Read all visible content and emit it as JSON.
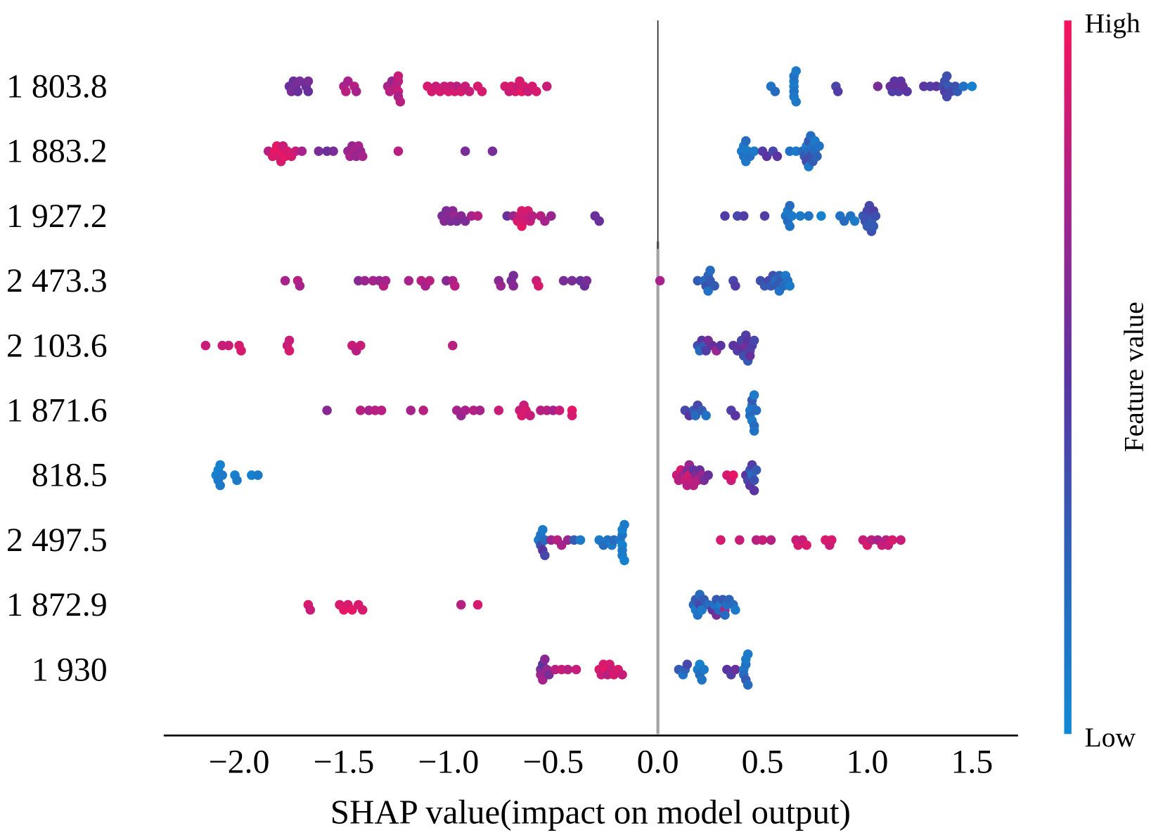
{
  "chart_data": {
    "type": "scatter",
    "xlabel": "SHAP value(impact on model output)",
    "xlim": [
      -2.36,
      1.72
    ],
    "x_ticks": [
      -2.0,
      -1.5,
      -1.0,
      -0.5,
      0.0,
      0.5,
      1.0,
      1.5
    ],
    "x_tick_labels": [
      "−2.0",
      "−1.5",
      "−1.0",
      "−0.5",
      "0.0",
      "0.5",
      "1.0",
      "1.5"
    ],
    "grid": false,
    "colorbar": {
      "label": "Feature value",
      "high_label": "High",
      "low_label": "Low",
      "colors": [
        "#1189d5",
        "#2c63b8",
        "#5a34a0",
        "#a7228a",
        "#f6145c"
      ]
    },
    "series": [
      {
        "name": "1 803.8",
        "x": [
          -1.76,
          -1.75,
          -1.74,
          -1.73,
          -1.72,
          -1.71,
          -1.68,
          -1.67,
          -1.67,
          -1.5,
          -1.49,
          -1.48,
          -1.45,
          -1.44,
          -1.29,
          -1.28,
          -1.27,
          -1.25,
          -1.24,
          -1.24,
          -1.24,
          -1.24,
          -1.23,
          -1.1,
          -1.08,
          -1.06,
          -1.04,
          -1.02,
          -1.0,
          -0.99,
          -0.97,
          -0.96,
          -0.94,
          -0.92,
          -0.9,
          -0.86,
          -0.84,
          -0.73,
          -0.71,
          -0.7,
          -0.68,
          -0.67,
          -0.66,
          -0.65,
          -0.64,
          -0.62,
          -0.6,
          -0.58,
          -0.53,
          0.54,
          0.56,
          0.65,
          0.65,
          0.65,
          0.65,
          0.65,
          0.66,
          0.66,
          0.85,
          0.86,
          1.05,
          1.11,
          1.12,
          1.13,
          1.14,
          1.15,
          1.16,
          1.17,
          1.19,
          1.27,
          1.3,
          1.33,
          1.36,
          1.37,
          1.37,
          1.38,
          1.38,
          1.39,
          1.4,
          1.42,
          1.43,
          1.46,
          1.5
        ],
        "feature_value": [
          0.55,
          0.6,
          0.55,
          0.6,
          0.55,
          0.6,
          0.55,
          0.55,
          0.6,
          0.75,
          0.8,
          0.75,
          0.8,
          0.75,
          0.75,
          0.8,
          0.7,
          0.8,
          0.85,
          0.8,
          0.75,
          0.85,
          0.8,
          0.9,
          0.9,
          0.85,
          0.9,
          0.85,
          0.9,
          0.85,
          0.9,
          0.8,
          0.9,
          0.85,
          0.85,
          0.9,
          0.9,
          0.9,
          0.85,
          0.9,
          0.9,
          0.85,
          0.9,
          0.95,
          0.9,
          0.85,
          0.9,
          0.9,
          0.85,
          0.15,
          0.2,
          0.1,
          0.15,
          0.1,
          0.12,
          0.15,
          0.1,
          0.1,
          0.4,
          0.45,
          0.6,
          0.55,
          0.45,
          0.5,
          0.55,
          0.45,
          0.5,
          0.55,
          0.5,
          0.5,
          0.45,
          0.5,
          0.4,
          0.45,
          0.35,
          0.4,
          0.35,
          0.3,
          0.4,
          0.35,
          0.3,
          0.15,
          0.05
        ]
      },
      {
        "name": "1 883.2",
        "x": [
          -1.86,
          -1.84,
          -1.83,
          -1.82,
          -1.81,
          -1.8,
          -1.8,
          -1.79,
          -1.78,
          -1.77,
          -1.75,
          -1.73,
          -1.7,
          -1.62,
          -1.58,
          -1.55,
          -1.48,
          -1.47,
          -1.46,
          -1.45,
          -1.44,
          -1.43,
          -1.42,
          -1.41,
          -1.24,
          -0.92,
          -0.79,
          0.4,
          0.41,
          0.41,
          0.42,
          0.42,
          0.43,
          0.44,
          0.46,
          0.5,
          0.52,
          0.55,
          0.57,
          0.63,
          0.66,
          0.69,
          0.7,
          0.71,
          0.71,
          0.72,
          0.72,
          0.72,
          0.73,
          0.73,
          0.74,
          0.74,
          0.75,
          0.75,
          0.76,
          0.77
        ],
        "feature_value": [
          0.8,
          0.9,
          0.95,
          0.95,
          0.9,
          0.95,
          0.9,
          0.85,
          0.95,
          0.9,
          0.9,
          0.85,
          0.75,
          0.6,
          0.55,
          0.6,
          0.7,
          0.75,
          0.7,
          0.75,
          0.7,
          0.75,
          0.7,
          0.75,
          0.8,
          0.6,
          0.6,
          0.1,
          0.15,
          0.1,
          0.12,
          0.2,
          0.1,
          0.15,
          0.1,
          0.45,
          0.5,
          0.4,
          0.5,
          0.15,
          0.1,
          0.2,
          0.3,
          0.1,
          0.4,
          0.2,
          0.3,
          0.1,
          0.35,
          0.2,
          0.15,
          0.3,
          0.2,
          0.1,
          0.25,
          0.15
        ]
      },
      {
        "name": "1 927.2",
        "x": [
          -1.03,
          -1.02,
          -1.01,
          -1.0,
          -0.99,
          -0.98,
          -0.97,
          -0.96,
          -0.94,
          -0.92,
          -0.89,
          -0.86,
          -0.72,
          -0.69,
          -0.67,
          -0.66,
          -0.65,
          -0.65,
          -0.64,
          -0.63,
          -0.62,
          -0.61,
          -0.6,
          -0.56,
          -0.54,
          -0.51,
          -0.3,
          -0.28,
          0.32,
          0.38,
          0.41,
          0.51,
          0.61,
          0.62,
          0.62,
          0.63,
          0.63,
          0.64,
          0.68,
          0.72,
          0.78,
          0.87,
          0.89,
          0.92,
          0.94,
          0.98,
          0.99,
          1.0,
          1.0,
          1.01,
          1.01,
          1.02,
          1.02,
          1.03,
          1.03,
          1.04
        ],
        "feature_value": [
          0.6,
          0.65,
          0.6,
          0.65,
          0.6,
          0.65,
          0.7,
          0.6,
          0.65,
          0.6,
          0.75,
          0.8,
          0.55,
          0.7,
          0.9,
          0.85,
          0.9,
          0.95,
          0.9,
          0.85,
          0.9,
          0.85,
          0.8,
          0.8,
          0.75,
          0.7,
          0.55,
          0.55,
          0.45,
          0.4,
          0.45,
          0.45,
          0.15,
          0.2,
          0.1,
          0.15,
          0.2,
          0.1,
          0.1,
          0.15,
          0.05,
          0.15,
          0.2,
          0.15,
          0.1,
          0.3,
          0.35,
          0.4,
          0.3,
          0.35,
          0.4,
          0.3,
          0.35,
          0.45,
          0.3,
          0.35
        ]
      },
      {
        "name": "2 473.3",
        "x": [
          -1.78,
          -1.72,
          -1.71,
          -1.43,
          -1.4,
          -1.36,
          -1.33,
          -1.31,
          -1.3,
          -1.19,
          -1.13,
          -1.11,
          -1.09,
          -1.01,
          -0.98,
          -0.97,
          -0.76,
          -0.75,
          -0.7,
          -0.69,
          -0.69,
          -0.58,
          -0.57,
          -0.45,
          -0.41,
          -0.37,
          -0.35,
          -0.34,
          0.01,
          0.19,
          0.22,
          0.23,
          0.24,
          0.24,
          0.25,
          0.25,
          0.27,
          0.36,
          0.37,
          0.49,
          0.51,
          0.53,
          0.54,
          0.55,
          0.56,
          0.57,
          0.58,
          0.58,
          0.59,
          0.6,
          0.61,
          0.62,
          0.63
        ],
        "feature_value": [
          0.75,
          0.8,
          0.75,
          0.65,
          0.7,
          0.75,
          0.7,
          0.8,
          0.75,
          0.75,
          0.8,
          0.75,
          0.8,
          0.65,
          0.75,
          0.8,
          0.65,
          0.7,
          0.6,
          0.65,
          0.6,
          0.85,
          0.9,
          0.6,
          0.6,
          0.55,
          0.55,
          0.6,
          0.75,
          0.3,
          0.2,
          0.35,
          0.25,
          0.15,
          0.3,
          0.2,
          0.3,
          0.4,
          0.45,
          0.35,
          0.3,
          0.4,
          0.3,
          0.35,
          0.2,
          0.3,
          0.25,
          0.15,
          0.3,
          0.2,
          0.1,
          0.15,
          0.1
        ]
      },
      {
        "name": "2 103.6",
        "x": [
          -2.16,
          -2.08,
          -2.05,
          -2.0,
          -1.99,
          -1.77,
          -1.76,
          -1.76,
          -1.46,
          -1.44,
          -1.42,
          -0.98,
          0.19,
          0.2,
          0.21,
          0.22,
          0.23,
          0.24,
          0.26,
          0.28,
          0.3,
          0.36,
          0.38,
          0.39,
          0.4,
          0.41,
          0.41,
          0.42,
          0.42,
          0.43,
          0.43,
          0.44,
          0.44,
          0.45,
          0.46
        ],
        "feature_value": [
          0.85,
          0.85,
          0.85,
          0.9,
          0.9,
          0.85,
          0.9,
          0.85,
          0.85,
          0.8,
          0.85,
          0.8,
          0.35,
          0.2,
          0.5,
          0.3,
          0.45,
          0.6,
          0.55,
          0.7,
          0.5,
          0.5,
          0.45,
          0.55,
          0.4,
          0.5,
          0.35,
          0.6,
          0.45,
          0.5,
          0.3,
          0.4,
          0.55,
          0.45,
          0.4
        ]
      },
      {
        "name": "1 871.6",
        "x": [
          -1.58,
          -1.42,
          -1.38,
          -1.35,
          -1.32,
          -1.18,
          -1.12,
          -0.96,
          -0.94,
          -0.92,
          -0.88,
          -0.85,
          -0.76,
          -0.66,
          -0.65,
          -0.64,
          -0.63,
          -0.61,
          -0.56,
          -0.53,
          -0.5,
          -0.47,
          -0.41,
          -0.41,
          0.13,
          0.15,
          0.17,
          0.18,
          0.19,
          0.21,
          0.23,
          0.35,
          0.37,
          0.44,
          0.44,
          0.45,
          0.45,
          0.45,
          0.46,
          0.46,
          0.46,
          0.47
        ],
        "feature_value": [
          0.65,
          0.8,
          0.75,
          0.8,
          0.8,
          0.75,
          0.8,
          0.75,
          0.7,
          0.75,
          0.8,
          0.75,
          0.85,
          0.85,
          0.9,
          0.85,
          0.9,
          0.85,
          0.8,
          0.8,
          0.75,
          0.85,
          0.95,
          0.9,
          0.4,
          0.5,
          0.3,
          0.2,
          0.4,
          0.3,
          0.15,
          0.45,
          0.5,
          0.1,
          0.2,
          0.15,
          0.1,
          0.3,
          0.2,
          0.1,
          0.15,
          0.2
        ]
      },
      {
        "name": "818.5",
        "x": [
          -2.11,
          -2.1,
          -2.1,
          -2.09,
          -2.09,
          -2.08,
          -2.02,
          -2.01,
          -1.94,
          -1.91,
          0.09,
          0.1,
          0.11,
          0.12,
          0.13,
          0.14,
          0.14,
          0.15,
          0.15,
          0.16,
          0.17,
          0.17,
          0.18,
          0.19,
          0.2,
          0.21,
          0.22,
          0.24,
          0.33,
          0.35,
          0.36,
          0.42,
          0.43,
          0.44,
          0.44,
          0.45,
          0.45,
          0.46,
          0.46,
          0.47
        ],
        "feature_value": [
          0.05,
          0.1,
          0.05,
          0.1,
          0.05,
          0.1,
          0.05,
          0.1,
          0.05,
          0.1,
          0.85,
          0.8,
          0.9,
          0.75,
          0.85,
          0.6,
          0.8,
          0.9,
          0.7,
          0.85,
          0.5,
          0.8,
          0.65,
          0.8,
          0.55,
          0.7,
          0.6,
          0.55,
          0.9,
          0.85,
          0.95,
          0.5,
          0.4,
          0.3,
          0.5,
          0.2,
          0.45,
          0.35,
          0.5,
          0.3
        ]
      },
      {
        "name": "2 497.5",
        "x": [
          -0.57,
          -0.56,
          -0.56,
          -0.55,
          -0.55,
          -0.54,
          -0.54,
          -0.51,
          -0.48,
          -0.46,
          -0.43,
          -0.4,
          -0.37,
          -0.28,
          -0.26,
          -0.24,
          -0.22,
          -0.21,
          -0.18,
          -0.17,
          -0.17,
          -0.17,
          -0.17,
          -0.17,
          -0.16,
          -0.16,
          0.3,
          0.39,
          0.47,
          0.5,
          0.54,
          0.66,
          0.67,
          0.69,
          0.71,
          0.8,
          0.82,
          0.83,
          0.98,
          1.0,
          1.02,
          1.05,
          1.07,
          1.09,
          1.1,
          1.12,
          1.16
        ],
        "feature_value": [
          0.1,
          0.35,
          0.15,
          0.5,
          0.1,
          0.2,
          0.4,
          0.7,
          0.8,
          0.75,
          0.7,
          0.3,
          0.1,
          0.1,
          0.2,
          0.15,
          0.1,
          0.2,
          0.1,
          0.05,
          0.15,
          0.1,
          0.05,
          0.1,
          0.1,
          0.05,
          0.9,
          0.85,
          0.8,
          0.85,
          0.8,
          0.85,
          0.9,
          0.85,
          0.9,
          0.9,
          0.85,
          0.9,
          0.85,
          0.9,
          0.8,
          0.75,
          0.85,
          0.8,
          0.85,
          0.9,
          0.85
        ]
      },
      {
        "name": "1 872.9",
        "x": [
          -1.67,
          -1.66,
          -1.52,
          -1.5,
          -1.48,
          -1.46,
          -1.43,
          -1.41,
          -0.94,
          -0.86,
          0.17,
          0.18,
          0.18,
          0.19,
          0.2,
          0.2,
          0.21,
          0.22,
          0.24,
          0.26,
          0.27,
          0.28,
          0.28,
          0.29,
          0.3,
          0.31,
          0.32,
          0.32,
          0.33,
          0.34,
          0.36,
          0.37
        ],
        "feature_value": [
          0.9,
          0.85,
          0.9,
          0.95,
          0.9,
          0.95,
          0.9,
          0.9,
          0.8,
          0.9,
          0.2,
          0.1,
          0.3,
          0.15,
          0.4,
          0.2,
          0.1,
          0.3,
          0.2,
          0.5,
          0.15,
          0.3,
          0.6,
          0.2,
          0.1,
          0.3,
          0.8,
          0.2,
          0.15,
          0.25,
          0.2,
          0.1
        ]
      },
      {
        "name": "1 930",
        "x": [
          -0.56,
          -0.56,
          -0.55,
          -0.55,
          -0.54,
          -0.53,
          -0.52,
          -0.49,
          -0.46,
          -0.43,
          -0.39,
          -0.28,
          -0.27,
          -0.26,
          -0.25,
          -0.24,
          -0.23,
          -0.22,
          -0.21,
          -0.19,
          -0.17,
          0.1,
          0.12,
          0.13,
          0.14,
          0.19,
          0.2,
          0.2,
          0.21,
          0.22,
          0.33,
          0.35,
          0.37,
          0.41,
          0.41,
          0.42,
          0.42,
          0.42,
          0.43,
          0.43
        ],
        "feature_value": [
          0.6,
          0.7,
          0.5,
          0.75,
          0.65,
          0.7,
          0.6,
          0.8,
          0.85,
          0.8,
          0.85,
          0.9,
          0.85,
          0.9,
          0.95,
          0.8,
          0.9,
          0.85,
          0.9,
          0.9,
          0.85,
          0.3,
          0.15,
          0.25,
          0.4,
          0.1,
          0.2,
          0.05,
          0.15,
          0.1,
          0.5,
          0.45,
          0.55,
          0.1,
          0.2,
          0.15,
          0.3,
          0.1,
          0.2,
          0.1
        ]
      }
    ]
  }
}
